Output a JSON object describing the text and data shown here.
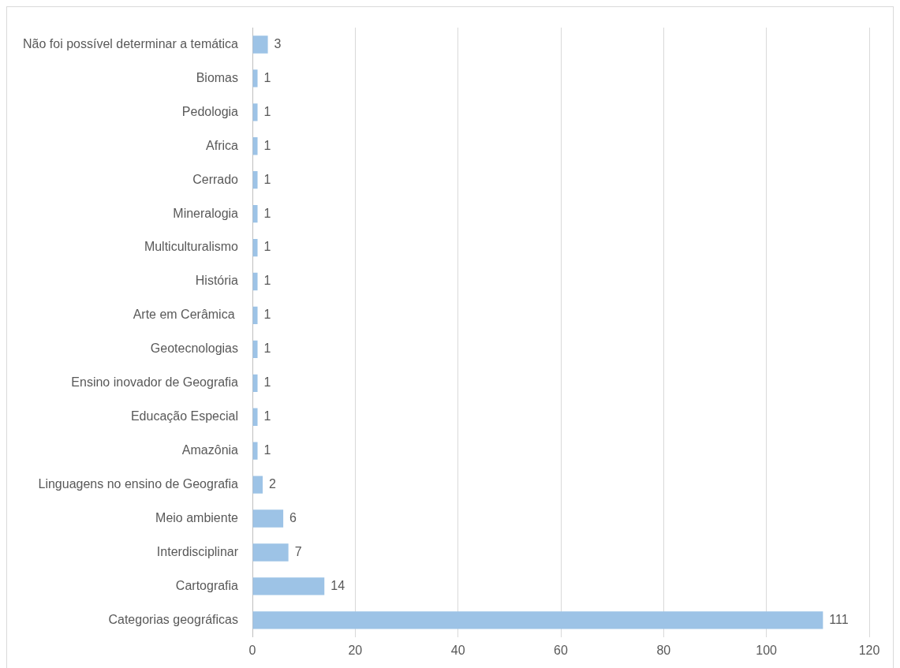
{
  "chart_data": {
    "type": "bar",
    "orientation": "horizontal",
    "categories": [
      "Não foi possível determinar a temática",
      "Biomas",
      "Pedologia",
      "Africa",
      "Cerrado",
      "Mineralogia",
      "Multiculturalismo",
      "História",
      "Arte em Cerâmica ",
      "Geotecnologias",
      "Ensino inovador de Geografia",
      "Educação Especial",
      "Amazônia",
      "Linguagens no ensino de Geografia",
      "Meio ambiente",
      "Interdisciplinar",
      "Cartografia",
      "Categorias geográficas"
    ],
    "values": [
      3,
      1,
      1,
      1,
      1,
      1,
      1,
      1,
      1,
      1,
      1,
      1,
      1,
      2,
      6,
      7,
      14,
      111
    ],
    "color": "#9dc3e6",
    "xlim": [
      0,
      120
    ],
    "xticks": [
      0,
      20,
      40,
      60,
      80,
      100,
      120
    ],
    "grid": "x",
    "data_labels": true,
    "legend": false
  }
}
